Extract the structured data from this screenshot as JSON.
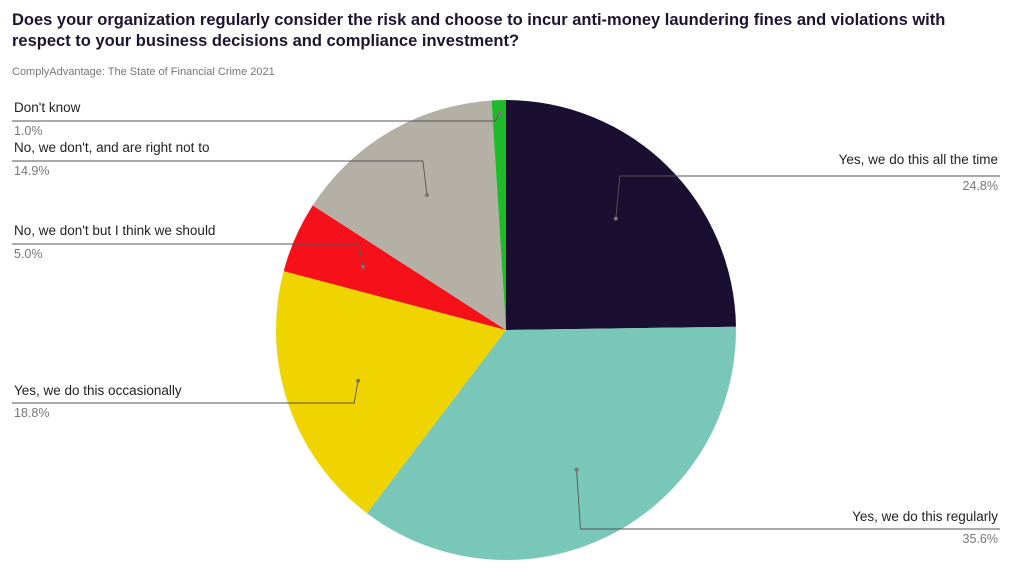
{
  "header": {
    "title": "Does your organization regularly consider the risk and choose to incur anti-money laundering fines and violations with respect to your business decisions and compliance investment?",
    "subtitle": "ComplyAdvantage: The State of Financial Crime 2021"
  },
  "chart_data": {
    "type": "pie",
    "title": "Does your organization regularly consider the risk and choose to incur anti-money laundering fines and violations with respect to your business decisions and compliance investment?",
    "subtitle": "ComplyAdvantage: The State of Financial Crime 2021",
    "slices": [
      {
        "label": "Yes, we do this all the time",
        "value": 24.8,
        "display": "24.8%",
        "color": "#1a0f30"
      },
      {
        "label": "Yes, we do this regularly",
        "value": 35.6,
        "display": "35.6%",
        "color": "#79c7b8"
      },
      {
        "label": "Yes, we do this occasionally",
        "value": 18.8,
        "display": "18.8%",
        "color": "#efd400"
      },
      {
        "label": "No, we don't but I think we should",
        "value": 5.0,
        "display": "5.0%",
        "color": "#f5101a"
      },
      {
        "label": "No, we don't, and are right not to",
        "value": 14.9,
        "display": "14.9%",
        "color": "#b4b0a6"
      },
      {
        "label": "Don't know",
        "value": 1.0,
        "display": "1.0%",
        "color": "#1fba2a"
      }
    ]
  }
}
